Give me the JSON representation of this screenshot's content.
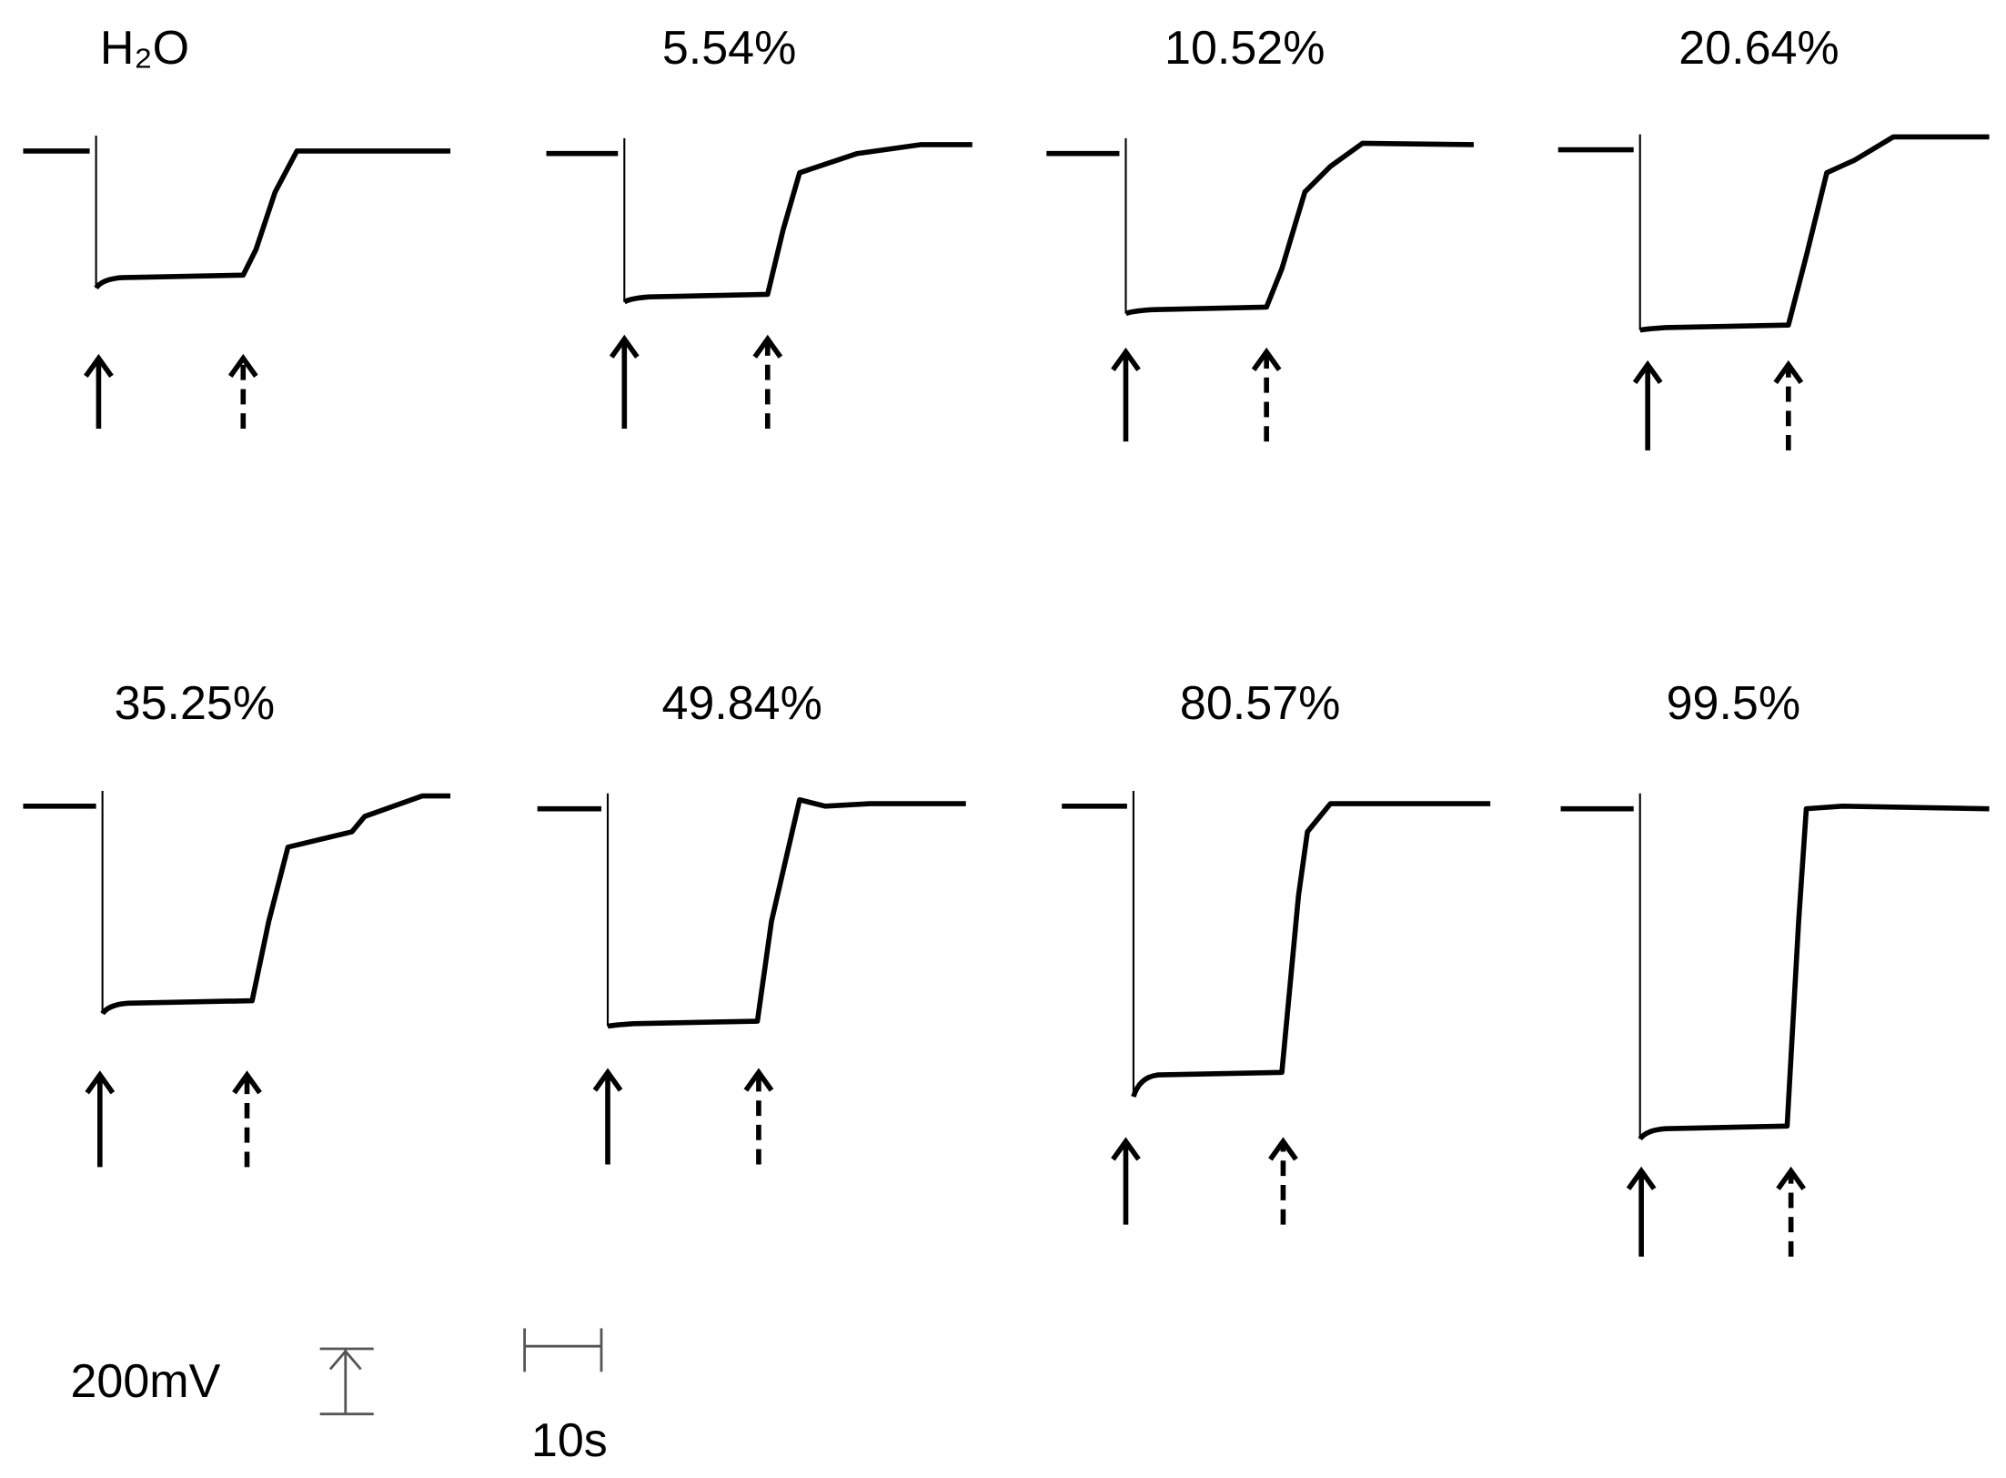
{
  "panels": [
    {
      "label": "H₂O"
    },
    {
      "label": "5.54%"
    },
    {
      "label": "10.52%"
    },
    {
      "label": "20.64%"
    },
    {
      "label": "35.25%"
    },
    {
      "label": "49.84%"
    },
    {
      "label": "80.57%"
    },
    {
      "label": "99.5%"
    }
  ],
  "scale_bars": {
    "voltage": "200mV",
    "time": "10s"
  }
}
